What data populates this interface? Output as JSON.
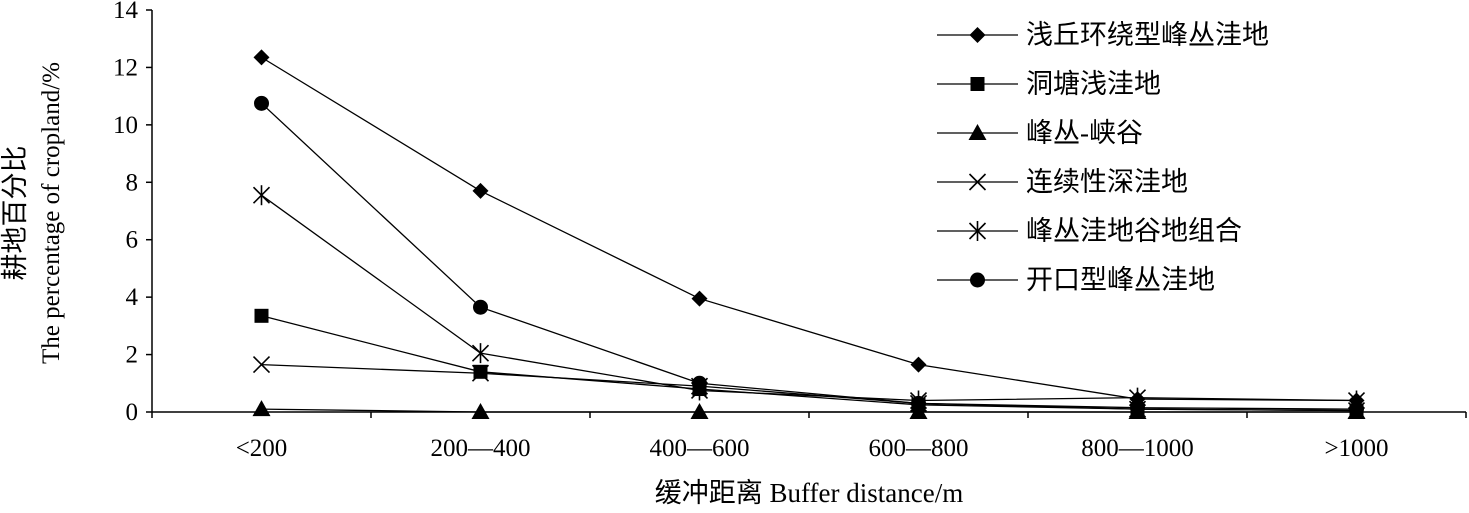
{
  "chart_data": {
    "type": "line",
    "categories": [
      "<200",
      "200—400",
      "400—600",
      "600—800",
      "800—1000",
      ">1000"
    ],
    "xlabel": "缓冲距离 Buffer distance/m",
    "ylabel_cn": "耕地百分比",
    "ylabel_en": "The percentage of cropland/%",
    "ylim": [
      0,
      14
    ],
    "yticks": [
      0,
      2,
      4,
      6,
      8,
      10,
      12,
      14
    ],
    "grid": false,
    "legend_position": "top-right",
    "series": [
      {
        "name": "浅丘环绕型峰丛洼地",
        "marker": "diamond",
        "values": [
          12.35,
          7.7,
          3.95,
          1.65,
          0.45,
          0.4
        ]
      },
      {
        "name": "洞塘浅洼地",
        "marker": "square",
        "values": [
          3.35,
          1.4,
          0.8,
          0.25,
          0.1,
          0.05
        ]
      },
      {
        "name": " 峰丛-峡谷",
        "marker": "triangle",
        "values": [
          0.1,
          0.0,
          0.0,
          0.0,
          0.0,
          0.0
        ]
      },
      {
        "name": "连续性深洼地",
        "marker": "x",
        "values": [
          1.65,
          1.35,
          0.9,
          0.3,
          0.1,
          0.05
        ]
      },
      {
        "name": "峰丛洼地谷地组合",
        "marker": "asterisk",
        "values": [
          7.55,
          2.05,
          0.75,
          0.4,
          0.5,
          0.4
        ]
      },
      {
        "name": "开口型峰丛洼地",
        "marker": "circle",
        "values": [
          10.75,
          3.65,
          1.0,
          0.3,
          0.15,
          0.1
        ]
      }
    ]
  }
}
